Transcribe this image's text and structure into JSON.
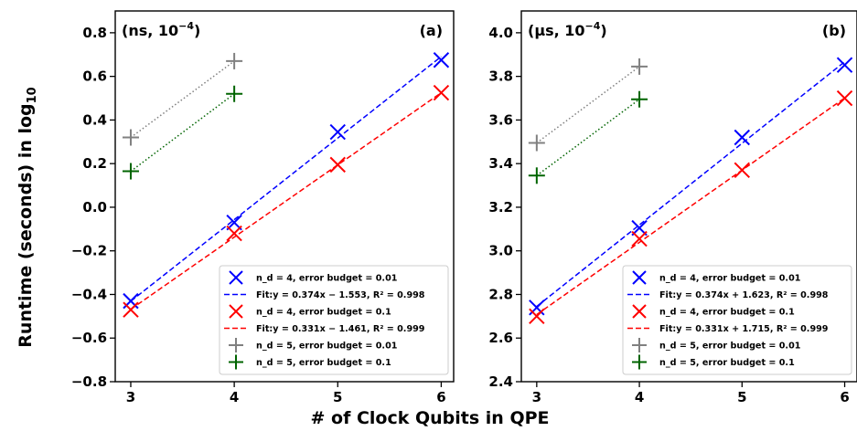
{
  "figure": {
    "ylabel_main": "Runtime (seconds) in log",
    "ylabel_sub": "10",
    "xlabel": "# of Clock Qubits in QPE"
  },
  "chart_data": [
    {
      "type": "scatter",
      "panel_label": "(a)",
      "unit_label": "(ns, 10",
      "unit_exp": "−4",
      "unit_close": ")",
      "xlabel": "# of Clock Qubits in QPE",
      "ylabel": "Runtime (seconds) in log10",
      "xlim": [
        2.85,
        6.12
      ],
      "ylim": [
        -0.8,
        0.9
      ],
      "xticks": [
        3,
        4,
        5,
        6
      ],
      "yticks": [
        -0.8,
        -0.6,
        -0.4,
        -0.2,
        0.0,
        0.2,
        0.4,
        0.6,
        0.8
      ],
      "ytick_labels": [
        "−0.8",
        "−0.6",
        "−0.4",
        "−0.2",
        "0.0",
        "0.2",
        "0.4",
        "0.6",
        "0.8"
      ],
      "grid": false,
      "legend_position": "lower-right",
      "series": [
        {
          "name": "n_d = 4, error budget = 0.01",
          "marker": "x",
          "color": "#0000ff",
          "x": [
            3,
            4,
            5,
            6
          ],
          "y": [
            -0.43,
            -0.07,
            0.345,
            0.675
          ]
        },
        {
          "name": "Fit: y = 0.374x − 1.553, R² = 0.998",
          "line": "dashed",
          "color": "#0000ff",
          "x": [
            3,
            6
          ],
          "y": [
            -0.431,
            0.691
          ]
        },
        {
          "name": "n_d = 4, error budget = 0.1",
          "marker": "x",
          "color": "#ff0000",
          "x": [
            3,
            4,
            5,
            6
          ],
          "y": [
            -0.47,
            -0.12,
            0.195,
            0.525
          ]
        },
        {
          "name": "Fit: y = 0.331x − 1.461, R² = 0.999",
          "line": "dashed",
          "color": "#ff0000",
          "x": [
            3,
            6
          ],
          "y": [
            -0.468,
            0.525
          ]
        },
        {
          "name": "n_d = 5, error budget = 0.01",
          "marker": "+",
          "color": "#808080",
          "connect": "dotted",
          "x": [
            3,
            4
          ],
          "y": [
            0.32,
            0.67
          ]
        },
        {
          "name": "n_d = 5, error budget = 0.1",
          "marker": "+",
          "color": "#006400",
          "connect": "dotted",
          "x": [
            3,
            4
          ],
          "y": [
            0.165,
            0.52
          ]
        }
      ],
      "legend": [
        {
          "kind": "x",
          "color": "#0000ff",
          "label": "n_d = 4, error budget = 0.01"
        },
        {
          "kind": "dash",
          "color": "#0000ff",
          "label": "Fit:y = 0.374x − 1.553, R² = 0.998"
        },
        {
          "kind": "x",
          "color": "#ff0000",
          "label": "n_d = 4, error budget = 0.1"
        },
        {
          "kind": "dash",
          "color": "#ff0000",
          "label": "Fit:y = 0.331x − 1.461, R² = 0.999"
        },
        {
          "kind": "plus",
          "color": "#808080",
          "label": "n_d = 5, error budget = 0.01"
        },
        {
          "kind": "plus",
          "color": "#006400",
          "label": "n_d = 5, error budget = 0.1"
        }
      ]
    },
    {
      "type": "scatter",
      "panel_label": "(b)",
      "unit_label": "(μs, 10",
      "unit_exp": "−4",
      "unit_close": ")",
      "xlabel": "# of Clock Qubits in QPE",
      "ylabel": "Runtime (seconds) in log10",
      "xlim": [
        2.85,
        6.12
      ],
      "ylim": [
        2.4,
        4.1
      ],
      "xticks": [
        3,
        4,
        5,
        6
      ],
      "yticks": [
        2.4,
        2.6,
        2.8,
        3.0,
        3.2,
        3.4,
        3.6,
        3.8,
        4.0
      ],
      "ytick_labels": [
        "2.4",
        "2.6",
        "2.8",
        "3.0",
        "3.2",
        "3.4",
        "3.6",
        "3.8",
        "4.0"
      ],
      "grid": false,
      "legend_position": "lower-right",
      "series": [
        {
          "name": "n_d = 4, error budget = 0.01",
          "marker": "x",
          "color": "#0000ff",
          "x": [
            3,
            4,
            5,
            6
          ],
          "y": [
            2.74,
            3.105,
            3.52,
            3.852
          ]
        },
        {
          "name": "Fit: y = 0.374x + 1.623, R² = 0.998",
          "line": "dashed",
          "color": "#0000ff",
          "x": [
            3,
            6
          ],
          "y": [
            2.745,
            3.867
          ]
        },
        {
          "name": "n_d = 4, error budget = 0.1",
          "marker": "x",
          "color": "#ff0000",
          "x": [
            3,
            4,
            5,
            6
          ],
          "y": [
            2.7,
            3.055,
            3.37,
            3.7
          ]
        },
        {
          "name": "Fit: y = 0.331x + 1.715, R² = 0.999",
          "line": "dashed",
          "color": "#ff0000",
          "x": [
            3,
            6
          ],
          "y": [
            2.708,
            3.701
          ]
        },
        {
          "name": "n_d = 5, error budget = 0.01",
          "marker": "+",
          "color": "#808080",
          "connect": "dotted",
          "x": [
            3,
            4
          ],
          "y": [
            3.495,
            3.845
          ]
        },
        {
          "name": "n_d = 5, error budget = 0.1",
          "marker": "+",
          "color": "#006400",
          "connect": "dotted",
          "x": [
            3,
            4
          ],
          "y": [
            3.345,
            3.695
          ]
        }
      ],
      "legend": [
        {
          "kind": "x",
          "color": "#0000ff",
          "label": "n_d = 4, error budget = 0.01"
        },
        {
          "kind": "dash",
          "color": "#0000ff",
          "label": "Fit:y = 0.374x + 1.623, R² = 0.998"
        },
        {
          "kind": "x",
          "color": "#ff0000",
          "label": "n_d = 4, error budget = 0.1"
        },
        {
          "kind": "dash",
          "color": "#ff0000",
          "label": "Fit:y = 0.331x + 1.715, R² = 0.999"
        },
        {
          "kind": "plus",
          "color": "#808080",
          "label": "n_d = 5, error budget = 0.01"
        },
        {
          "kind": "plus",
          "color": "#006400",
          "label": "n_d = 5, error budget = 0.1"
        }
      ]
    }
  ]
}
